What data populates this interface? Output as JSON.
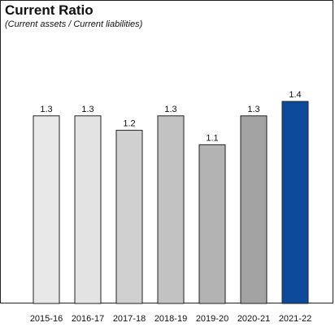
{
  "chart_data": {
    "type": "bar",
    "title": "Current Ratio",
    "subtitle": "(Current assets / Current liabilities)",
    "categories": [
      "2015-16",
      "2016-17",
      "2017-18",
      "2018-19",
      "2019-20",
      "2020-21",
      "2021-22"
    ],
    "values": [
      1.3,
      1.3,
      1.2,
      1.3,
      1.1,
      1.3,
      1.4
    ],
    "data_labels": [
      "1.3",
      "1.3",
      "1.2",
      "1.3",
      "1.1",
      "1.3",
      "1.4"
    ],
    "colors": [
      "#e8e8e8",
      "#e3e3e3",
      "#d0d0d0",
      "#c2c2c2",
      "#b3b3b3",
      "#a3a3a3",
      "#0d4a9c"
    ],
    "xlabel": "",
    "ylabel": "",
    "ylim": [
      0,
      1.4
    ],
    "grid": false,
    "legend": "none"
  }
}
